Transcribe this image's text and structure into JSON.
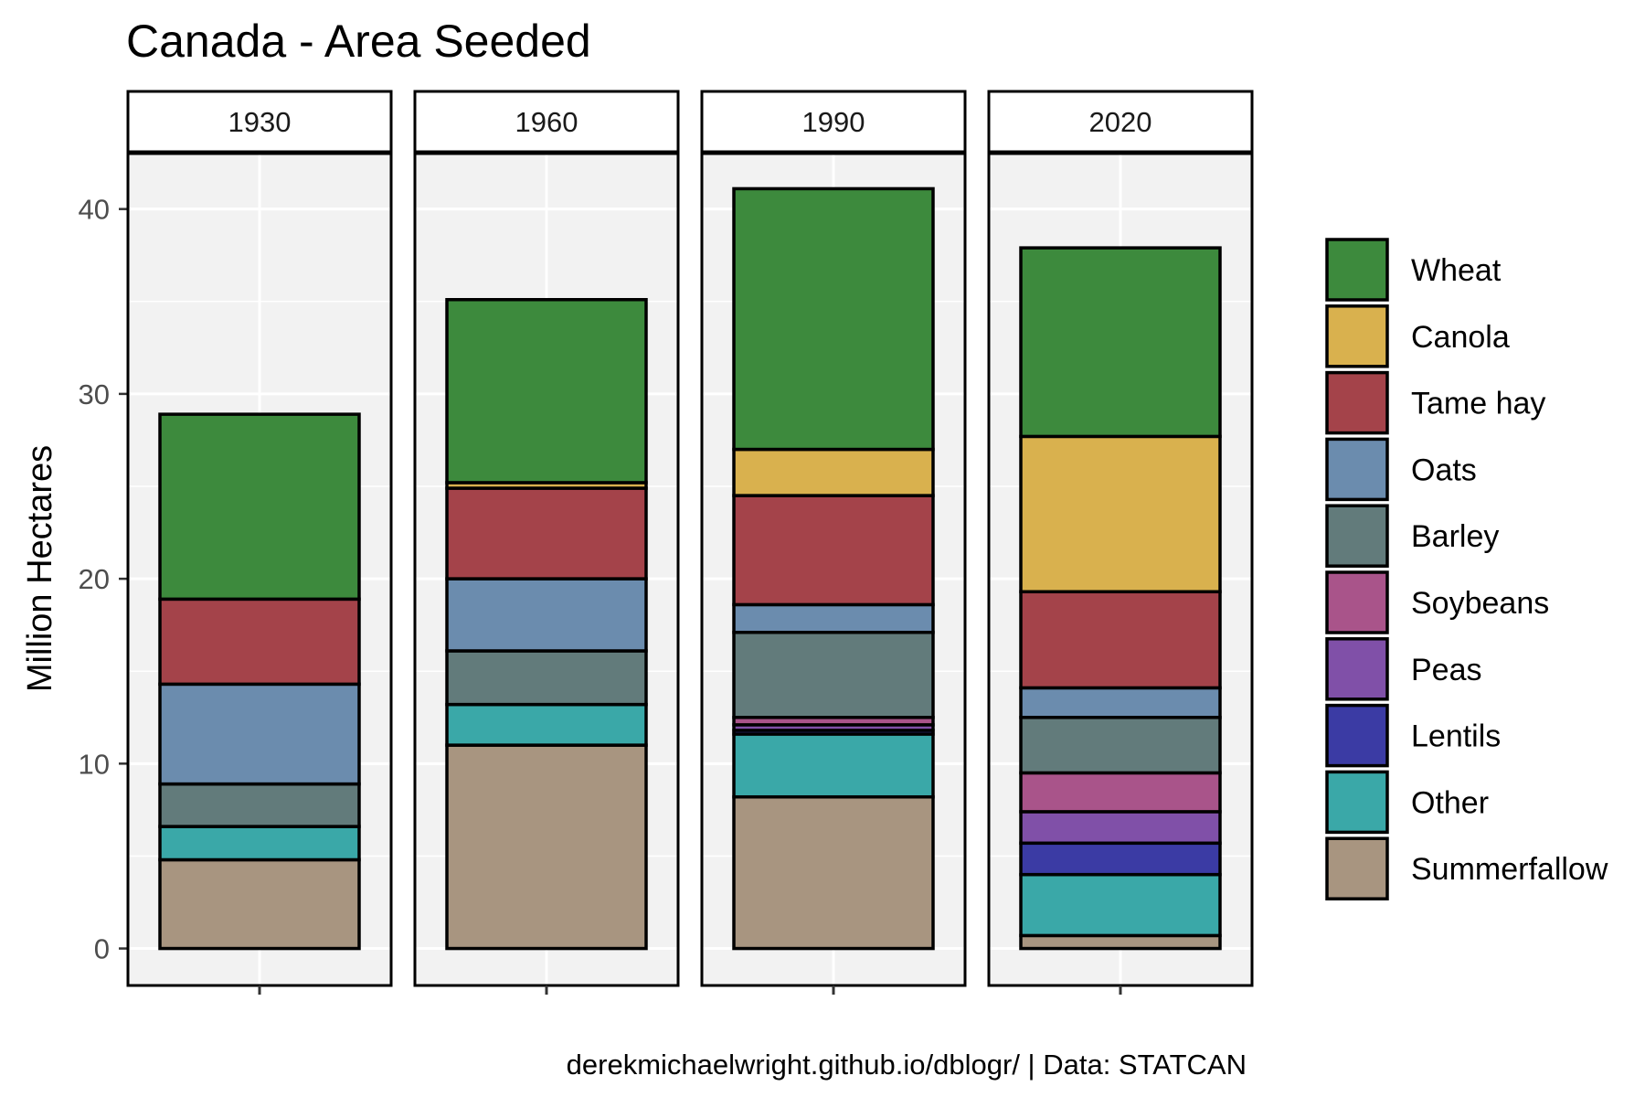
{
  "chart_data": {
    "type": "bar",
    "stacked": true,
    "faceted_by": "year",
    "title": "Canada - Area Seeded",
    "ylabel": "Million Hectares",
    "xlabel": "",
    "caption": "derekmichaelwright.github.io/dblogr/ | Data: STATCAN",
    "ylim": [
      -2,
      43
    ],
    "yticks": [
      0,
      10,
      20,
      30,
      40
    ],
    "grid": true,
    "legend_position": "right",
    "series": [
      {
        "name": "Wheat",
        "color": "#3d8a3d"
      },
      {
        "name": "Canola",
        "color": "#d9b14e"
      },
      {
        "name": "Tame hay",
        "color": "#a4434a"
      },
      {
        "name": "Oats",
        "color": "#6b8cae"
      },
      {
        "name": "Barley",
        "color": "#627b7b"
      },
      {
        "name": "Soybeans",
        "color": "#a9548a"
      },
      {
        "name": "Peas",
        "color": "#8050a8"
      },
      {
        "name": "Lentils",
        "color": "#3b3ba4"
      },
      {
        "name": "Other",
        "color": "#3aa8a8"
      },
      {
        "name": "Summerfallow",
        "color": "#a89580"
      }
    ],
    "facets": [
      {
        "year": "1930",
        "values": {
          "Summerfallow": 4.8,
          "Other": 1.8,
          "Soybeans": 0,
          "Peas": 0,
          "Lentils": 0,
          "Barley": 2.3,
          "Oats": 5.4,
          "Tame hay": 4.6,
          "Canola": 0,
          "Wheat": 10.0
        }
      },
      {
        "year": "1960",
        "values": {
          "Summerfallow": 11.0,
          "Other": 2.2,
          "Soybeans": 0,
          "Peas": 0,
          "Lentils": 0,
          "Barley": 2.9,
          "Oats": 3.9,
          "Tame hay": 4.9,
          "Canola": 0.3,
          "Wheat": 9.9
        }
      },
      {
        "year": "1990",
        "values": {
          "Summerfallow": 8.2,
          "Other": 3.4,
          "Lentils": 0.2,
          "Peas": 0.3,
          "Soybeans": 0.4,
          "Barley": 4.6,
          "Oats": 1.5,
          "Tame hay": 5.9,
          "Canola": 2.5,
          "Wheat": 14.1
        }
      },
      {
        "year": "2020",
        "values": {
          "Summerfallow": 0.7,
          "Other": 3.3,
          "Lentils": 1.7,
          "Peas": 1.7,
          "Soybeans": 2.1,
          "Barley": 3.0,
          "Oats": 1.6,
          "Tame hay": 5.2,
          "Canola": 8.4,
          "Wheat": 10.2
        }
      }
    ]
  }
}
